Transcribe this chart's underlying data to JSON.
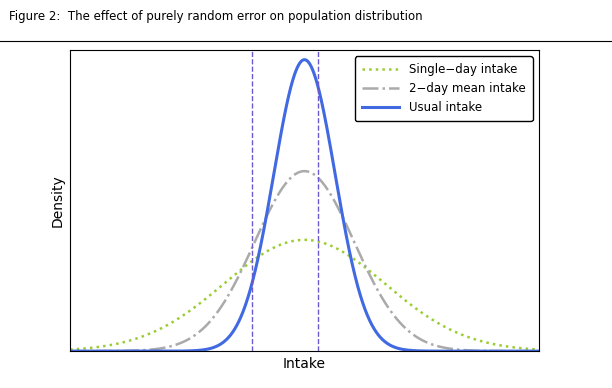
{
  "title": "Figure 2:  The effect of purely random error on population distribution",
  "xlabel": "Intake",
  "ylabel": "Density",
  "mean": 0.0,
  "sigma_usual": 0.42,
  "sigma_2day": 0.68,
  "sigma_1day": 1.1,
  "vline1_x": -0.72,
  "vline2_x": 0.18,
  "vline_color": "#6A5ACD",
  "usual_color": "#4169E1",
  "twoday_color": "#AAAAAA",
  "oneday_color": "#9ACD32",
  "legend_labels": [
    "Single−day intake",
    "2−day mean intake",
    "Usual intake"
  ],
  "xlim": [
    -3.2,
    3.2
  ],
  "ylim": [
    0,
    0.98
  ],
  "figsize": [
    6.12,
    3.88
  ],
  "dpi": 100
}
